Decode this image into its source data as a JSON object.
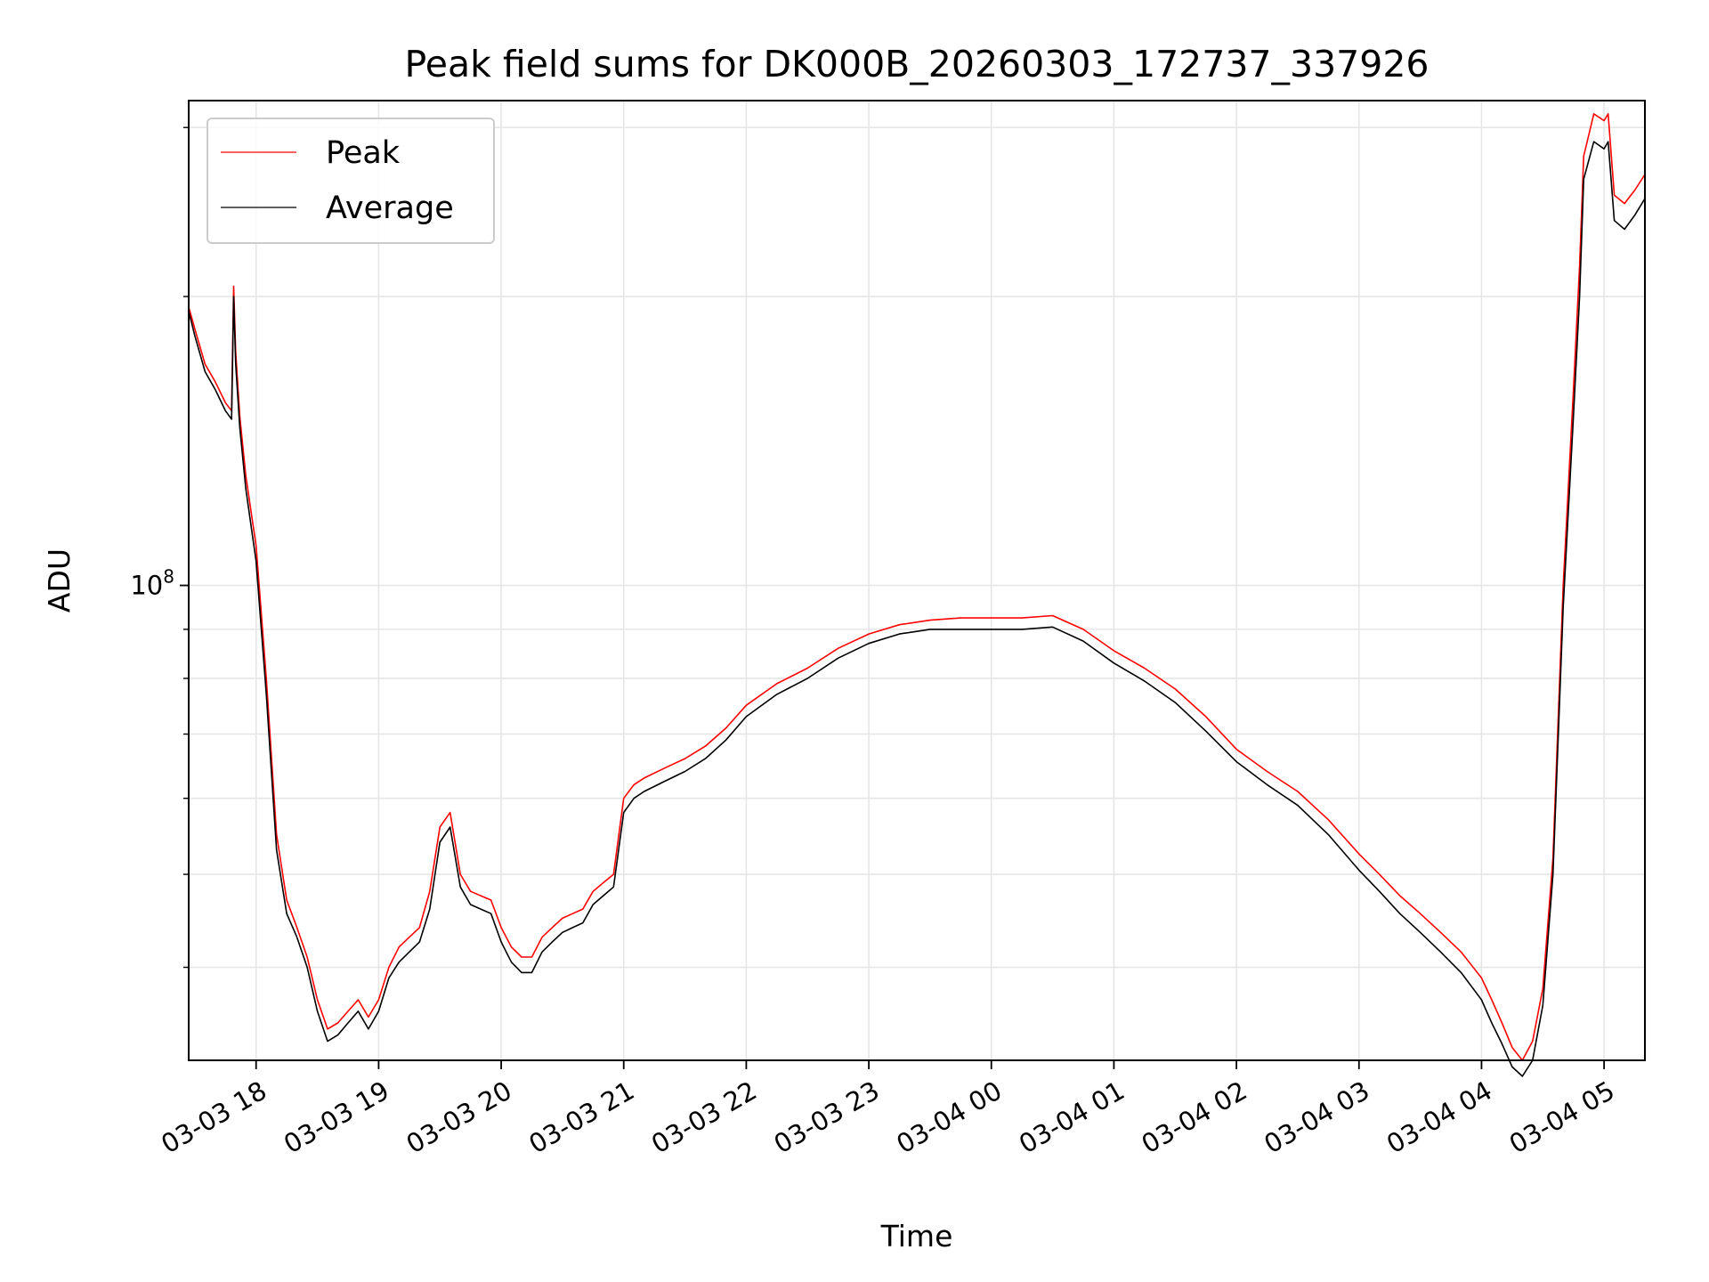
{
  "chart_data": {
    "type": "line",
    "title": "Peak field sums for DK000B_20260303_172737_337926",
    "xlabel": "Time",
    "ylabel": "ADU",
    "yscale": "log",
    "grid": true,
    "legend_position": "top-left",
    "xlim": [
      "2026-03-03 17:27",
      "2026-03-04 05:20"
    ],
    "ylim": [
      32000000,
      320000000
    ],
    "x_ticks": [
      {
        "at": "2026-03-03 18:00",
        "label": "03-03 18"
      },
      {
        "at": "2026-03-03 19:00",
        "label": "03-03 19"
      },
      {
        "at": "2026-03-03 20:00",
        "label": "03-03 20"
      },
      {
        "at": "2026-03-03 21:00",
        "label": "03-03 21"
      },
      {
        "at": "2026-03-03 22:00",
        "label": "03-03 22"
      },
      {
        "at": "2026-03-03 23:00",
        "label": "03-03 23"
      },
      {
        "at": "2026-03-04 00:00",
        "label": "03-04 00"
      },
      {
        "at": "2026-03-04 01:00",
        "label": "03-04 01"
      },
      {
        "at": "2026-03-04 02:00",
        "label": "03-04 02"
      },
      {
        "at": "2026-03-04 03:00",
        "label": "03-04 03"
      },
      {
        "at": "2026-03-04 04:00",
        "label": "03-04 04"
      },
      {
        "at": "2026-03-04 05:00",
        "label": "03-04 05"
      }
    ],
    "y_major_tick": {
      "value": 100000000,
      "base": "10",
      "exp": "8"
    },
    "y_minor_ticks": [
      40000000,
      50000000,
      60000000,
      70000000,
      80000000,
      90000000,
      200000000,
      300000000
    ],
    "series": [
      {
        "name": "Peak",
        "color": "#ff0000",
        "x": [
          "2026-03-03 17:27",
          "2026-03-03 17:30",
          "2026-03-03 17:35",
          "2026-03-03 17:40",
          "2026-03-03 17:45",
          "2026-03-03 17:48",
          "2026-03-03 17:49",
          "2026-03-03 17:50",
          "2026-03-03 17:52",
          "2026-03-03 17:55",
          "2026-03-03 18:00",
          "2026-03-03 18:05",
          "2026-03-03 18:10",
          "2026-03-03 18:15",
          "2026-03-03 18:20",
          "2026-03-03 18:25",
          "2026-03-03 18:30",
          "2026-03-03 18:35",
          "2026-03-03 18:40",
          "2026-03-03 18:45",
          "2026-03-03 18:50",
          "2026-03-03 18:55",
          "2026-03-03 19:00",
          "2026-03-03 19:05",
          "2026-03-03 19:10",
          "2026-03-03 19:15",
          "2026-03-03 19:20",
          "2026-03-03 19:25",
          "2026-03-03 19:30",
          "2026-03-03 19:35",
          "2026-03-03 19:40",
          "2026-03-03 19:45",
          "2026-03-03 19:50",
          "2026-03-03 19:55",
          "2026-03-03 20:00",
          "2026-03-03 20:05",
          "2026-03-03 20:10",
          "2026-03-03 20:15",
          "2026-03-03 20:20",
          "2026-03-03 20:25",
          "2026-03-03 20:30",
          "2026-03-03 20:35",
          "2026-03-03 20:40",
          "2026-03-03 20:45",
          "2026-03-03 20:50",
          "2026-03-03 20:55",
          "2026-03-03 21:00",
          "2026-03-03 21:05",
          "2026-03-03 21:10",
          "2026-03-03 21:20",
          "2026-03-03 21:30",
          "2026-03-03 21:40",
          "2026-03-03 21:50",
          "2026-03-03 22:00",
          "2026-03-03 22:15",
          "2026-03-03 22:30",
          "2026-03-03 22:45",
          "2026-03-03 23:00",
          "2026-03-03 23:15",
          "2026-03-03 23:30",
          "2026-03-03 23:45",
          "2026-03-04 00:00",
          "2026-03-04 00:15",
          "2026-03-04 00:30",
          "2026-03-04 00:45",
          "2026-03-04 01:00",
          "2026-03-04 01:15",
          "2026-03-04 01:30",
          "2026-03-04 01:45",
          "2026-03-04 02:00",
          "2026-03-04 02:15",
          "2026-03-04 02:30",
          "2026-03-04 02:45",
          "2026-03-04 03:00",
          "2026-03-04 03:10",
          "2026-03-04 03:20",
          "2026-03-04 03:30",
          "2026-03-04 03:40",
          "2026-03-04 03:50",
          "2026-03-04 04:00",
          "2026-03-04 04:05",
          "2026-03-04 04:10",
          "2026-03-04 04:15",
          "2026-03-04 04:20",
          "2026-03-04 04:25",
          "2026-03-04 04:30",
          "2026-03-04 04:35",
          "2026-03-04 04:40",
          "2026-03-04 04:45",
          "2026-03-04 04:48",
          "2026-03-04 04:50",
          "2026-03-04 04:55",
          "2026-03-04 05:00",
          "2026-03-04 05:02",
          "2026-03-04 05:05",
          "2026-03-04 05:10",
          "2026-03-04 05:15",
          "2026-03-04 05:20"
        ],
        "y": [
          195000000,
          185000000,
          170000000,
          163000000,
          155000000,
          152000000,
          205000000,
          175000000,
          150000000,
          130000000,
          110000000,
          80000000,
          55000000,
          47000000,
          44000000,
          41000000,
          37000000,
          34500000,
          35000000,
          36000000,
          37000000,
          35500000,
          37000000,
          40000000,
          42000000,
          43000000,
          44000000,
          48000000,
          56000000,
          58000000,
          50000000,
          48000000,
          47500000,
          47000000,
          44000000,
          42000000,
          41000000,
          41000000,
          43000000,
          44000000,
          45000000,
          45500000,
          46000000,
          48000000,
          49000000,
          50000000,
          60000000,
          62000000,
          63000000,
          64500000,
          66000000,
          68000000,
          71000000,
          75000000,
          79000000,
          82000000,
          86000000,
          89000000,
          91000000,
          92000000,
          92500000,
          92500000,
          92500000,
          93000000,
          90000000,
          85500000,
          82000000,
          78000000,
          73000000,
          67500000,
          64000000,
          61000000,
          57000000,
          52500000,
          50000000,
          47500000,
          45500000,
          43500000,
          41500000,
          39000000,
          37000000,
          35000000,
          33000000,
          32000000,
          33500000,
          38000000,
          52000000,
          100000000,
          160000000,
          215000000,
          280000000,
          310000000,
          305000000,
          310000000,
          255000000,
          250000000,
          258000000,
          268000000
        ]
      },
      {
        "name": "Average",
        "color": "#000000",
        "x": [
          "2026-03-03 17:27",
          "2026-03-03 17:30",
          "2026-03-03 17:35",
          "2026-03-03 17:40",
          "2026-03-03 17:45",
          "2026-03-03 17:48",
          "2026-03-03 17:49",
          "2026-03-03 17:50",
          "2026-03-03 17:52",
          "2026-03-03 17:55",
          "2026-03-03 18:00",
          "2026-03-03 18:05",
          "2026-03-03 18:10",
          "2026-03-03 18:15",
          "2026-03-03 18:20",
          "2026-03-03 18:25",
          "2026-03-03 18:30",
          "2026-03-03 18:35",
          "2026-03-03 18:40",
          "2026-03-03 18:45",
          "2026-03-03 18:50",
          "2026-03-03 18:55",
          "2026-03-03 19:00",
          "2026-03-03 19:05",
          "2026-03-03 19:10",
          "2026-03-03 19:15",
          "2026-03-03 19:20",
          "2026-03-03 19:25",
          "2026-03-03 19:30",
          "2026-03-03 19:35",
          "2026-03-03 19:40",
          "2026-03-03 19:45",
          "2026-03-03 19:50",
          "2026-03-03 19:55",
          "2026-03-03 20:00",
          "2026-03-03 20:05",
          "2026-03-03 20:10",
          "2026-03-03 20:15",
          "2026-03-03 20:20",
          "2026-03-03 20:25",
          "2026-03-03 20:30",
          "2026-03-03 20:35",
          "2026-03-03 20:40",
          "2026-03-03 20:45",
          "2026-03-03 20:50",
          "2026-03-03 20:55",
          "2026-03-03 21:00",
          "2026-03-03 21:05",
          "2026-03-03 21:10",
          "2026-03-03 21:20",
          "2026-03-03 21:30",
          "2026-03-03 21:40",
          "2026-03-03 21:50",
          "2026-03-03 22:00",
          "2026-03-03 22:15",
          "2026-03-03 22:30",
          "2026-03-03 22:45",
          "2026-03-03 23:00",
          "2026-03-03 23:15",
          "2026-03-03 23:30",
          "2026-03-03 23:45",
          "2026-03-04 00:00",
          "2026-03-04 00:15",
          "2026-03-04 00:30",
          "2026-03-04 00:45",
          "2026-03-04 01:00",
          "2026-03-04 01:15",
          "2026-03-04 01:30",
          "2026-03-04 01:45",
          "2026-03-04 02:00",
          "2026-03-04 02:15",
          "2026-03-04 02:30",
          "2026-03-04 02:45",
          "2026-03-04 03:00",
          "2026-03-04 03:10",
          "2026-03-04 03:20",
          "2026-03-04 03:30",
          "2026-03-04 03:40",
          "2026-03-04 03:50",
          "2026-03-04 04:00",
          "2026-03-04 04:05",
          "2026-03-04 04:10",
          "2026-03-04 04:15",
          "2026-03-04 04:20",
          "2026-03-04 04:25",
          "2026-03-04 04:30",
          "2026-03-04 04:35",
          "2026-03-04 04:40",
          "2026-03-04 04:45",
          "2026-03-04 04:48",
          "2026-03-04 04:50",
          "2026-03-04 04:55",
          "2026-03-04 05:00",
          "2026-03-04 05:02",
          "2026-03-04 05:05",
          "2026-03-04 05:10",
          "2026-03-04 05:15",
          "2026-03-04 05:20"
        ],
        "y": [
          193000000,
          182000000,
          167000000,
          160000000,
          152000000,
          149000000,
          200000000,
          170000000,
          146000000,
          126000000,
          106000000,
          77000000,
          53000000,
          45500000,
          43000000,
          40000000,
          36000000,
          33500000,
          34000000,
          35000000,
          36000000,
          34500000,
          36000000,
          39000000,
          40500000,
          41500000,
          42500000,
          46000000,
          54000000,
          56000000,
          48500000,
          46500000,
          46000000,
          45500000,
          42500000,
          40500000,
          39500000,
          39500000,
          41500000,
          42500000,
          43500000,
          44000000,
          44500000,
          46500000,
          47500000,
          48500000,
          58000000,
          60000000,
          61000000,
          62500000,
          64000000,
          66000000,
          69000000,
          73000000,
          77000000,
          80000000,
          84000000,
          87000000,
          89000000,
          90000000,
          90000000,
          90000000,
          90000000,
          90500000,
          87500000,
          83000000,
          79500000,
          75500000,
          70500000,
          65500000,
          62000000,
          59000000,
          55000000,
          50500000,
          48000000,
          45500000,
          43500000,
          41500000,
          39500000,
          37000000,
          35000000,
          33300000,
          31500000,
          30800000,
          32000000,
          36500000,
          50000000,
          95000000,
          150000000,
          200000000,
          265000000,
          290000000,
          285000000,
          290000000,
          240000000,
          235000000,
          243000000,
          253000000
        ]
      }
    ]
  }
}
